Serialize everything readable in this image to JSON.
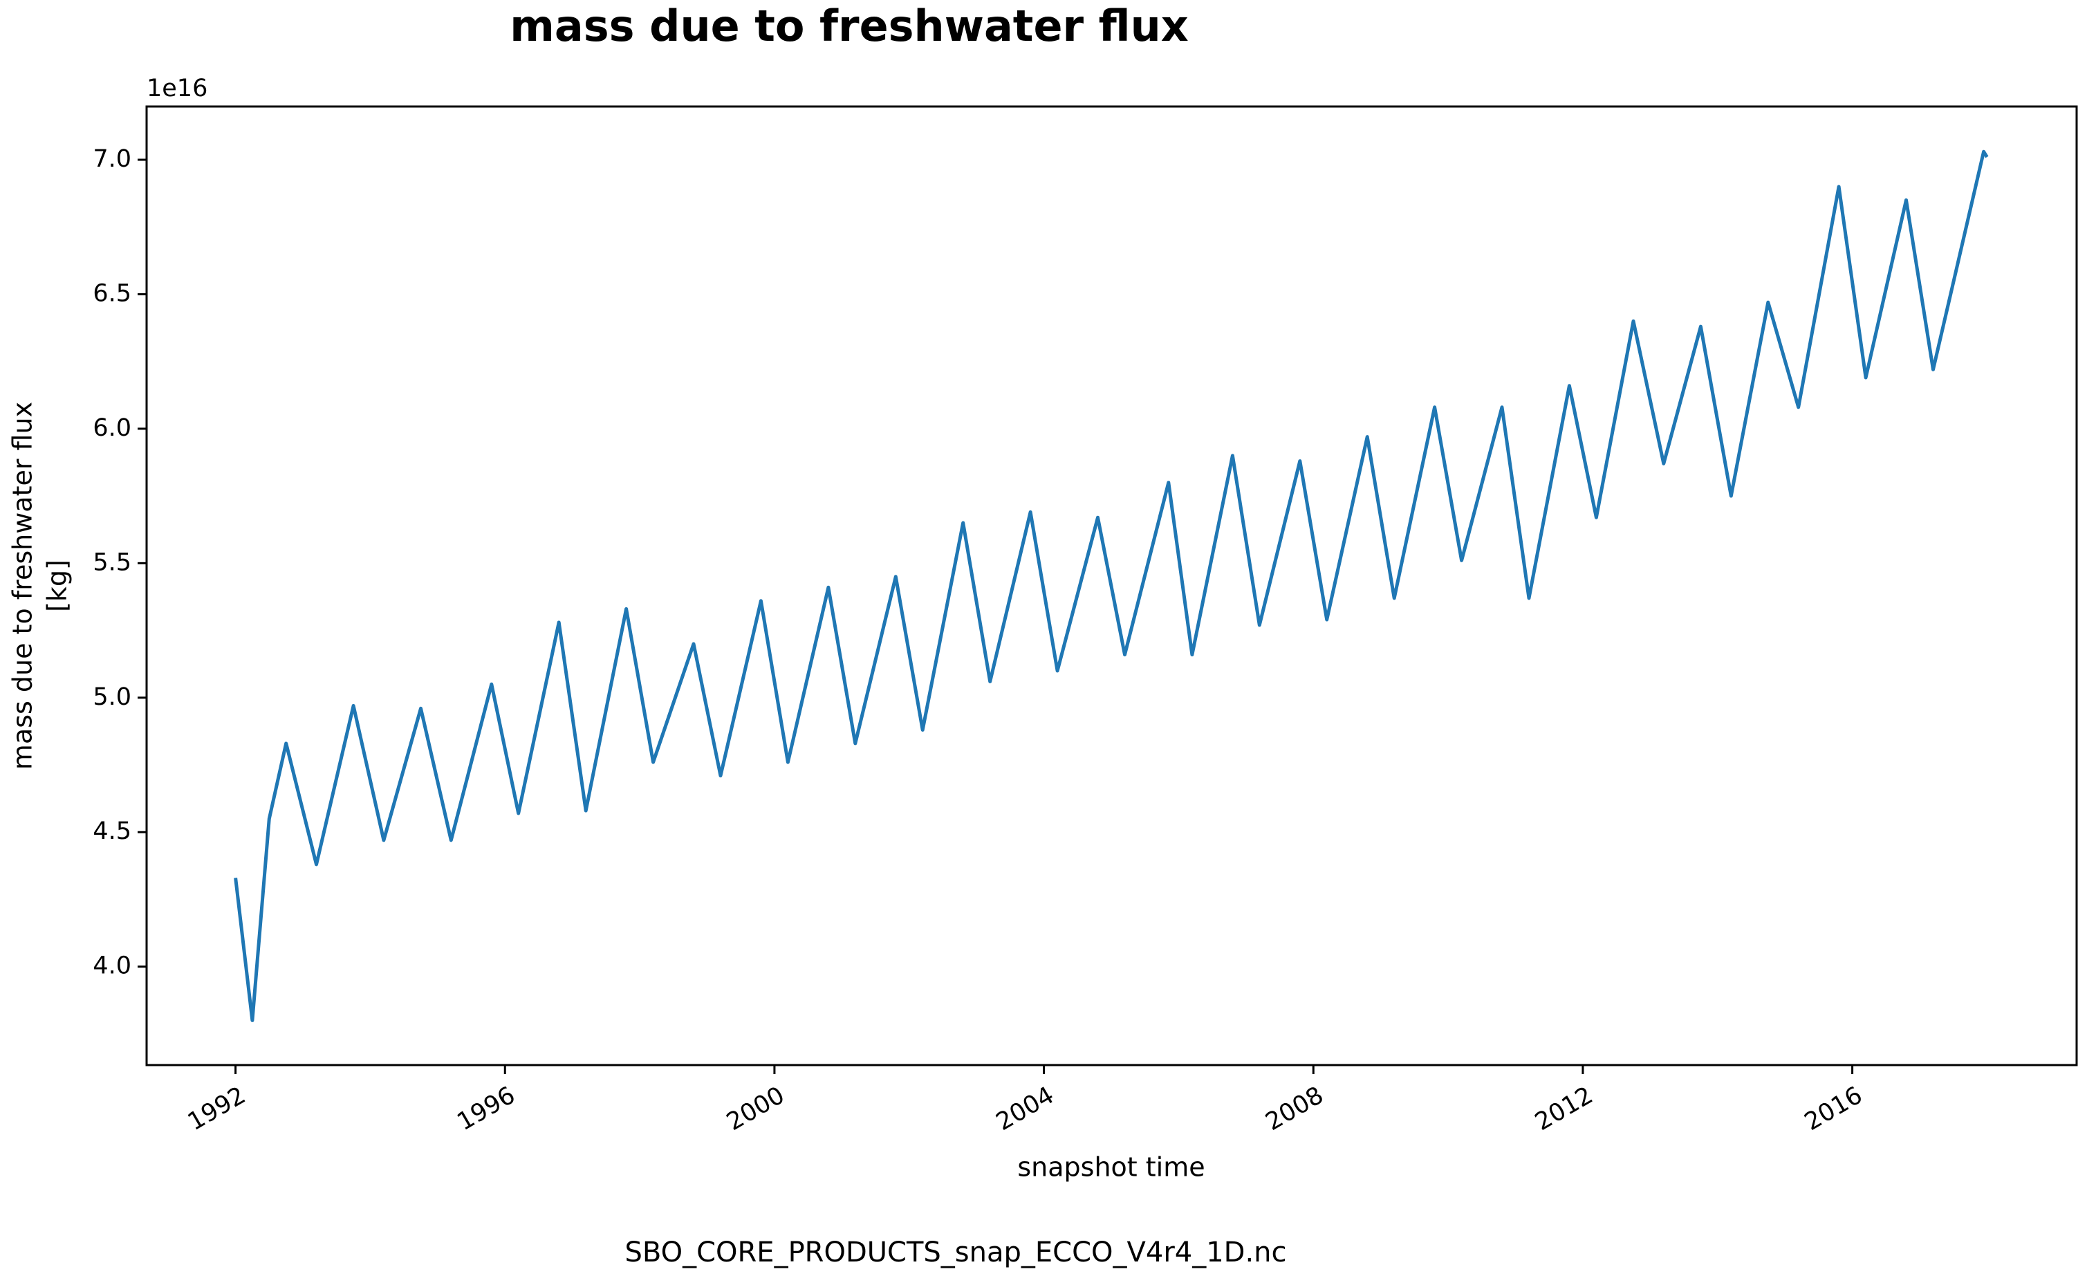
{
  "chart_data": {
    "type": "line",
    "title": "mass due to freshwater flux",
    "xlabel": "snapshot time",
    "ylabel": [
      "mass due to freshwater flux",
      "[kg]"
    ],
    "offset_text": "1e16",
    "footer": "SBO_CORE_PRODUCTS_snap_ECCO_V4r4_1D.nc",
    "xlim": [
      1990.68,
      2019.33
    ],
    "xticks": [
      1992,
      1996,
      2000,
      2004,
      2008,
      2012,
      2016
    ],
    "ylim": [
      3.634,
      7.198
    ],
    "yticks": [
      {
        "value": 4,
        "label": "4.0"
      },
      {
        "value": 4.5,
        "label": "4.5"
      },
      {
        "value": 5,
        "label": "5.0"
      },
      {
        "value": 5.5,
        "label": "5.5"
      },
      {
        "value": 6,
        "label": "6.0"
      },
      {
        "value": 6.5,
        "label": "6.5"
      },
      {
        "value": 7,
        "label": "7.0"
      }
    ],
    "series": [
      {
        "name": "mass due to freshwater flux",
        "color": "#1f77b4",
        "x": [
          1992.0,
          1992.25,
          1992.5,
          1992.75,
          1993.2,
          1993.75,
          1994.2,
          1994.75,
          1995.2,
          1995.8,
          1996.2,
          1996.8,
          1997.2,
          1997.8,
          1998.2,
          1998.8,
          1999.2,
          1999.8,
          2000.2,
          2000.8,
          2001.2,
          2001.8,
          2002.2,
          2002.8,
          2003.2,
          2003.8,
          2004.2,
          2004.8,
          2005.2,
          2005.85,
          2006.2,
          2006.8,
          2007.2,
          2007.8,
          2008.2,
          2008.8,
          2009.2,
          2009.8,
          2010.2,
          2010.8,
          2011.2,
          2011.8,
          2012.2,
          2012.75,
          2013.2,
          2013.75,
          2014.2,
          2014.75,
          2015.2,
          2015.8,
          2016.2,
          2016.8,
          2017.2,
          2017.95,
          2018.0
        ],
        "values": [
          4.33,
          3.8,
          4.55,
          4.83,
          4.38,
          4.97,
          4.47,
          4.96,
          4.47,
          5.05,
          4.57,
          5.28,
          4.58,
          5.33,
          4.76,
          5.2,
          4.71,
          5.36,
          4.76,
          5.41,
          4.83,
          5.45,
          4.88,
          5.65,
          5.06,
          5.69,
          5.1,
          5.67,
          5.16,
          5.8,
          5.16,
          5.9,
          5.27,
          5.88,
          5.29,
          5.97,
          5.37,
          6.08,
          5.51,
          6.08,
          5.37,
          6.16,
          5.67,
          6.4,
          5.87,
          6.38,
          5.75,
          6.47,
          6.08,
          6.9,
          6.19,
          6.85,
          6.22,
          7.03,
          7.01
        ]
      }
    ]
  }
}
